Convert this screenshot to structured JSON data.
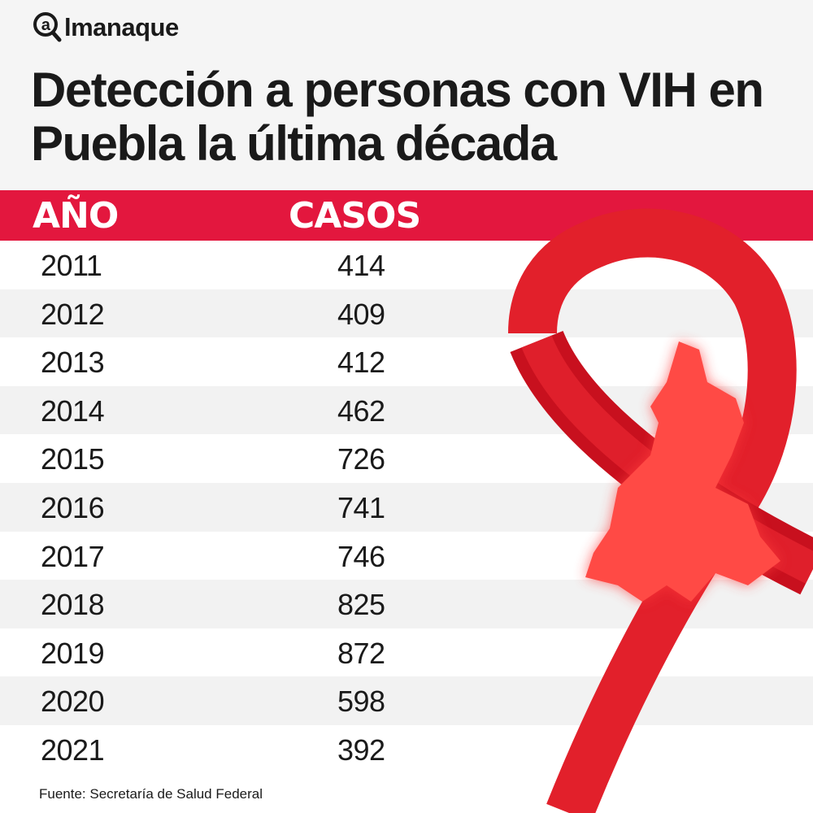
{
  "brand": "almanaque",
  "title": "Detección a personas con VIH en Puebla la última década",
  "colors": {
    "accent": "#e3173e",
    "header_bg": "#f5f5f5",
    "row_alt": "#f2f2f2"
  },
  "chart_data": {
    "type": "table",
    "columns": [
      "AÑO",
      "CASOS"
    ],
    "rows": [
      [
        "2011",
        "414"
      ],
      [
        "2012",
        "409"
      ],
      [
        "2013",
        "412"
      ],
      [
        "2014",
        "462"
      ],
      [
        "2015",
        "726"
      ],
      [
        "2016",
        "741"
      ],
      [
        "2017",
        "746"
      ],
      [
        "2018",
        "825"
      ],
      [
        "2019",
        "872"
      ],
      [
        "2020",
        "598"
      ],
      [
        "2021",
        "392"
      ]
    ]
  },
  "source": "Fuente: Secretaría de Salud Federal",
  "icons": [
    "magnifier-at-icon",
    "awareness-ribbon-icon",
    "puebla-map-icon"
  ]
}
